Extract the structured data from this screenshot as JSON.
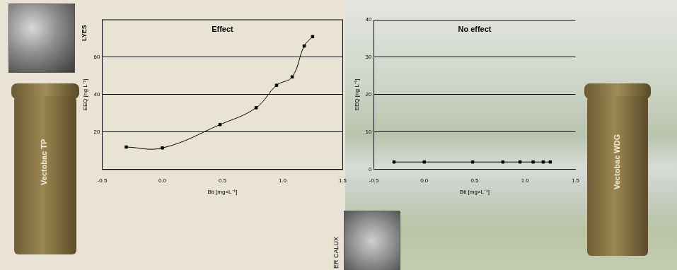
{
  "chart_data": [
    {
      "type": "line",
      "title": "Effect",
      "x_label": "Bti [mg×L⁻¹]",
      "y_label": "EEQ [ng L⁻¹]",
      "annotations": [
        "LYES",
        "Vectobac TP"
      ],
      "x": [
        -0.3,
        0.0,
        0.48,
        0.78,
        0.95,
        1.08,
        1.18,
        1.25
      ],
      "values": [
        12,
        11.5,
        24,
        33,
        45,
        49.5,
        66,
        71
      ],
      "color": "#000000",
      "marker": "square",
      "line_style": "smooth",
      "xlim": [
        -0.5,
        1.5
      ],
      "xticks": [
        {
          "value": -0.5,
          "label": "-0.5"
        },
        {
          "value": 0,
          "label": "0.0"
        },
        {
          "value": 0.5,
          "label": "0.5"
        },
        {
          "value": 1,
          "label": "1.0"
        },
        {
          "value": 1.5,
          "label": "1.5"
        }
      ],
      "ylim": [
        0,
        80
      ],
      "yticks": [
        20,
        40,
        60
      ],
      "grid": true
    },
    {
      "type": "line",
      "title": "No effect",
      "x_label": "Bti [mg×L⁻¹]",
      "y_label": "EEQ [ng L⁻¹]",
      "annotations": [
        "ER CALUX",
        "Vectobac WDG"
      ],
      "x": [
        -0.3,
        0.0,
        0.48,
        0.78,
        0.95,
        1.08,
        1.18,
        1.25
      ],
      "values": [
        2,
        2,
        2,
        2,
        2,
        2,
        2,
        2
      ],
      "color": "#000000",
      "marker": "square",
      "line_style": "solid",
      "xlim": [
        -0.5,
        1.5
      ],
      "xticks": [
        {
          "value": -0.5,
          "label": "-0.5"
        },
        {
          "value": 0,
          "label": "0.0"
        },
        {
          "value": 0.5,
          "label": "0.5"
        },
        {
          "value": 1,
          "label": "1.0"
        },
        {
          "value": 1.5,
          "label": "1.5"
        }
      ],
      "ylim": [
        0,
        40
      ],
      "yticks": [
        0,
        10,
        20,
        30,
        40
      ],
      "grid": true
    }
  ]
}
